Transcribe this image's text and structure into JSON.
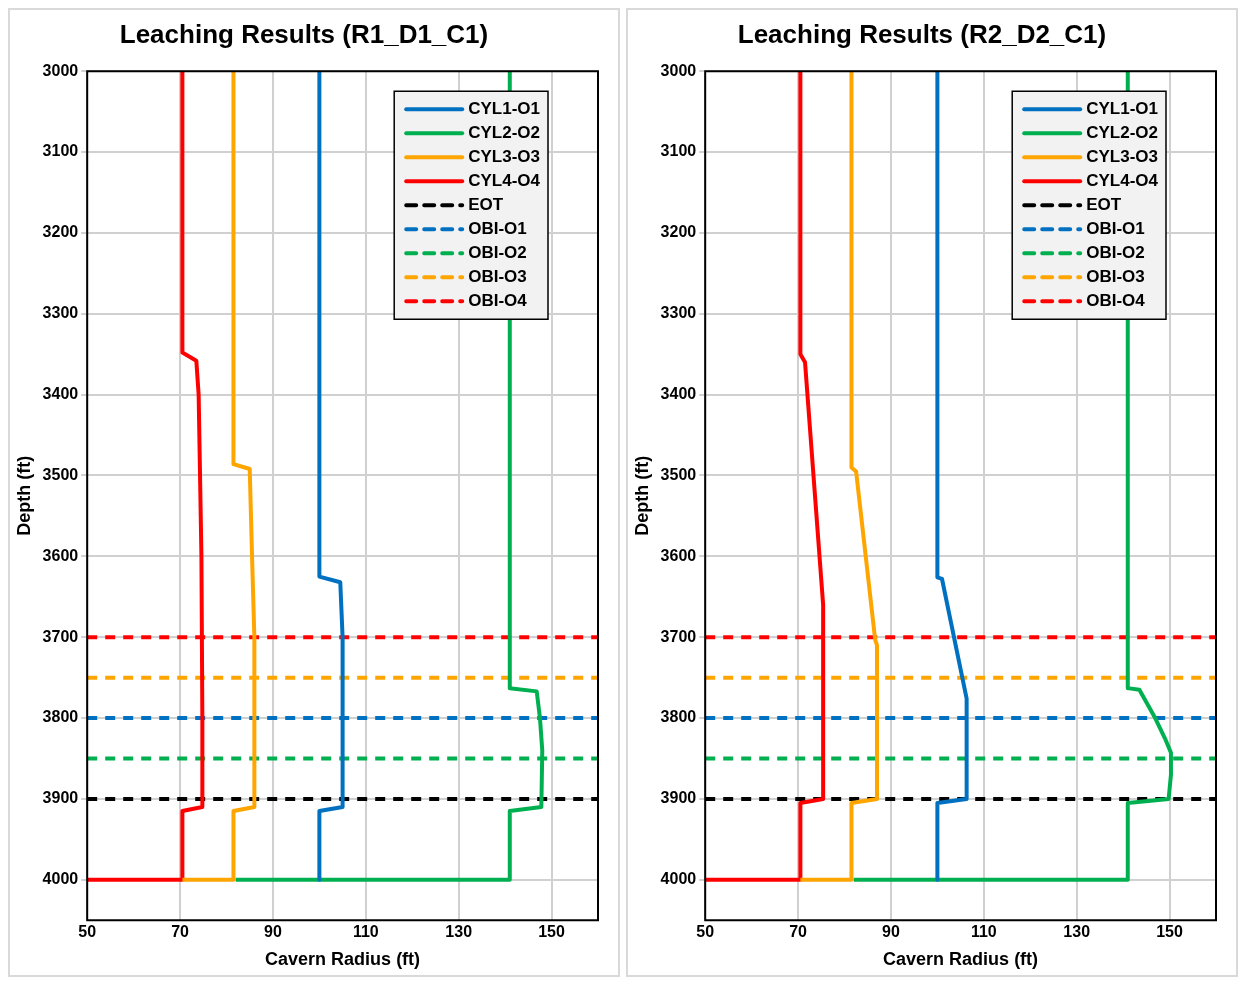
{
  "chart_data": [
    {
      "type": "line",
      "title": "Leaching Results (R1_D1_C1)",
      "xlabel": "Cavern Radius (ft)",
      "ylabel": "Depth (ft)",
      "xlim": [
        50,
        160
      ],
      "xticks": [
        50,
        70,
        90,
        110,
        130,
        150
      ],
      "ylim": [
        4050,
        3000
      ],
      "yticks": [
        3000,
        3100,
        3200,
        3300,
        3400,
        3500,
        3600,
        3700,
        3800,
        3900,
        4000
      ],
      "grid": true,
      "legend": "top right",
      "marker": "none",
      "series": [
        {
          "name": "CYL1-O1",
          "color": "#0070c0",
          "line_style": "solid",
          "x": [
            100,
            100,
            104.5,
            105,
            105,
            100,
            100
          ],
          "values": [
            3000,
            3625,
            3632,
            3700,
            3910,
            3915,
            4000
          ]
        },
        {
          "name": "CYL2-O2",
          "color": "#00b050",
          "line_style": "solid",
          "x": [
            141,
            141,
            146.8,
            147.5,
            148,
            147.8,
            141,
            141,
            82
          ],
          "values": [
            3000,
            3763,
            3767,
            3800,
            3840,
            3910,
            3915,
            4000,
            4000
          ]
        },
        {
          "name": "CYL3-O3",
          "color": "#ffa500",
          "line_style": "solid",
          "x": [
            81.5,
            81.5,
            85,
            85.5,
            86,
            86,
            81.5,
            81.5,
            70.5
          ],
          "values": [
            3000,
            3486,
            3492,
            3600,
            3700,
            3910,
            3915,
            4000,
            4000
          ]
        },
        {
          "name": "CYL4-O4",
          "color": "#ff0000",
          "line_style": "solid",
          "x": [
            70.5,
            70.5,
            73.5,
            74,
            74.3,
            74.6,
            74.8,
            74.8,
            70.5,
            70.5,
            50
          ],
          "values": [
            3000,
            3348,
            3358,
            3400,
            3500,
            3600,
            3800,
            3910,
            3915,
            4000,
            4000
          ]
        },
        {
          "name": "EOT",
          "color": "#000000",
          "line_style": "dashed",
          "x": [
            50,
            160
          ],
          "values": [
            3900,
            3900
          ]
        },
        {
          "name": "OBI-O1",
          "color": "#0070c0",
          "line_style": "dashed",
          "x": [
            50,
            160
          ],
          "values": [
            3800,
            3800
          ]
        },
        {
          "name": "OBI-O2",
          "color": "#00b050",
          "line_style": "dashed",
          "x": [
            50,
            160
          ],
          "values": [
            3850,
            3850
          ]
        },
        {
          "name": "OBI-O3",
          "color": "#ffa500",
          "line_style": "dashed",
          "x": [
            50,
            160
          ],
          "values": [
            3750,
            3750
          ]
        },
        {
          "name": "OBI-O4",
          "color": "#ff0000",
          "line_style": "dashed",
          "x": [
            50,
            160
          ],
          "values": [
            3700,
            3700
          ]
        }
      ]
    },
    {
      "type": "line",
      "title": "Leaching Results (R2_D2_C1)",
      "xlabel": "Cavern Radius (ft)",
      "ylabel": "Depth (ft)",
      "xlim": [
        50,
        160
      ],
      "xticks": [
        50,
        70,
        90,
        110,
        130,
        150
      ],
      "ylim": [
        4050,
        3000
      ],
      "yticks": [
        3000,
        3100,
        3200,
        3300,
        3400,
        3500,
        3600,
        3700,
        3800,
        3900,
        4000
      ],
      "grid": true,
      "legend": "top right",
      "marker": "none",
      "series": [
        {
          "name": "CYL1-O1",
          "color": "#0070c0",
          "line_style": "solid",
          "x": [
            100,
            100,
            101,
            106.3,
            106.3,
            100,
            100
          ],
          "values": [
            3000,
            3626,
            3628,
            3776,
            3900,
            3905,
            4000
          ]
        },
        {
          "name": "CYL2-O2",
          "color": "#00b050",
          "line_style": "solid",
          "x": [
            141,
            141,
            143.5,
            146.9,
            149,
            150.3,
            150.3,
            149.8,
            141,
            141,
            82
          ],
          "values": [
            3000,
            3763,
            3765,
            3800,
            3825,
            3843,
            3870,
            3900,
            3905,
            4000,
            4000
          ]
        },
        {
          "name": "CYL3-O3",
          "color": "#ffa500",
          "line_style": "solid",
          "x": [
            81.5,
            81.5,
            82.5,
            86.6,
            87,
            87,
            81.5,
            81.5,
            70.5
          ],
          "values": [
            3000,
            3490,
            3495,
            3703,
            3710,
            3900,
            3905,
            4000,
            4000
          ]
        },
        {
          "name": "CYL4-O4",
          "color": "#ff0000",
          "line_style": "solid",
          "x": [
            70.5,
            70.5,
            71.5,
            75.4,
            75.4,
            70.5,
            70.5,
            50
          ],
          "values": [
            3000,
            3350,
            3360,
            3660,
            3900,
            3905,
            4000,
            4000
          ]
        },
        {
          "name": "EOT",
          "color": "#000000",
          "line_style": "dashed",
          "x": [
            50,
            160
          ],
          "values": [
            3900,
            3900
          ]
        },
        {
          "name": "OBI-O1",
          "color": "#0070c0",
          "line_style": "dashed",
          "x": [
            50,
            160
          ],
          "values": [
            3800,
            3800
          ]
        },
        {
          "name": "OBI-O2",
          "color": "#00b050",
          "line_style": "dashed",
          "x": [
            50,
            160
          ],
          "values": [
            3850,
            3850
          ]
        },
        {
          "name": "OBI-O3",
          "color": "#ffa500",
          "line_style": "dashed",
          "x": [
            50,
            160
          ],
          "values": [
            3750,
            3750
          ]
        },
        {
          "name": "OBI-O4",
          "color": "#ff0000",
          "line_style": "dashed",
          "x": [
            50,
            160
          ],
          "values": [
            3700,
            3700
          ]
        }
      ]
    }
  ]
}
